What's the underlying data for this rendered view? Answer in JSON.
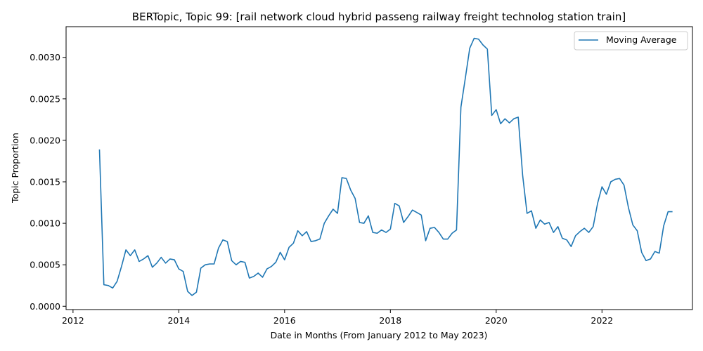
{
  "chart_data": {
    "type": "line",
    "title": "BERTopic, Topic 99: [rail network cloud hybrid passeng railway freight technolog station train]",
    "xlabel": "Date in Months (From January 2012 to May 2023)",
    "ylabel": "Topic Proportion",
    "xlim": [
      "2011-11-14",
      "2023-09-17"
    ],
    "ylim": [
      -4e-05,
      0.00337
    ],
    "x_ticks": [
      "2012",
      "2014",
      "2016",
      "2018",
      "2020",
      "2022"
    ],
    "y_ticks": [
      "0.0000",
      "0.0005",
      "0.0010",
      "0.0015",
      "0.0020",
      "0.0025",
      "0.0030"
    ],
    "legend": {
      "position": "top-right"
    },
    "grid": false,
    "series": [
      {
        "name": "Moving Average",
        "color": "#1f77b4",
        "x": [
          "2012-07",
          "2012-08",
          "2012-09",
          "2012-10",
          "2012-11",
          "2012-12",
          "2013-01",
          "2013-02",
          "2013-03",
          "2013-04",
          "2013-05",
          "2013-06",
          "2013-07",
          "2013-08",
          "2013-09",
          "2013-10",
          "2013-11",
          "2013-12",
          "2014-01",
          "2014-02",
          "2014-03",
          "2014-04",
          "2014-05",
          "2014-06",
          "2014-07",
          "2014-08",
          "2014-09",
          "2014-10",
          "2014-11",
          "2014-12",
          "2015-01",
          "2015-02",
          "2015-03",
          "2015-04",
          "2015-05",
          "2015-06",
          "2015-07",
          "2015-08",
          "2015-09",
          "2015-10",
          "2015-11",
          "2015-12",
          "2016-01",
          "2016-02",
          "2016-03",
          "2016-04",
          "2016-05",
          "2016-06",
          "2016-07",
          "2016-08",
          "2016-09",
          "2016-10",
          "2016-11",
          "2016-12",
          "2017-01",
          "2017-02",
          "2017-03",
          "2017-04",
          "2017-05",
          "2017-06",
          "2017-07",
          "2017-08",
          "2017-09",
          "2017-10",
          "2017-11",
          "2017-12",
          "2018-01",
          "2018-02",
          "2018-03",
          "2018-04",
          "2018-05",
          "2018-06",
          "2018-07",
          "2018-08",
          "2018-09",
          "2018-10",
          "2018-11",
          "2018-12",
          "2019-01",
          "2019-02",
          "2019-03",
          "2019-04",
          "2019-05",
          "2019-06",
          "2019-07",
          "2019-08",
          "2019-09",
          "2019-10",
          "2019-11",
          "2019-12",
          "2020-01",
          "2020-02",
          "2020-03",
          "2020-04",
          "2020-05",
          "2020-06",
          "2020-07",
          "2020-08",
          "2020-09",
          "2020-10",
          "2020-11",
          "2020-12",
          "2021-01",
          "2021-02",
          "2021-03",
          "2021-04",
          "2021-05",
          "2021-06",
          "2021-07",
          "2021-08",
          "2021-09",
          "2021-10",
          "2021-11",
          "2021-12",
          "2022-01",
          "2022-02",
          "2022-03",
          "2022-04",
          "2022-05",
          "2022-06",
          "2022-07",
          "2022-08",
          "2022-09",
          "2022-10",
          "2022-11",
          "2022-12",
          "2023-01",
          "2023-02",
          "2023-03",
          "2023-04",
          "2023-05"
        ],
        "y": [
          0.00189,
          0.00026,
          0.00025,
          0.00022,
          0.0003,
          0.00048,
          0.00068,
          0.00061,
          0.00068,
          0.00054,
          0.00057,
          0.00061,
          0.00047,
          0.00052,
          0.00059,
          0.00052,
          0.00057,
          0.00056,
          0.00045,
          0.00042,
          0.00018,
          0.00013,
          0.00017,
          0.00046,
          0.0005,
          0.00051,
          0.00051,
          0.0007,
          0.0008,
          0.00078,
          0.00055,
          0.0005,
          0.00054,
          0.00053,
          0.00034,
          0.00036,
          0.0004,
          0.00035,
          0.00045,
          0.00048,
          0.00053,
          0.00065,
          0.00056,
          0.00071,
          0.00076,
          0.00091,
          0.00085,
          0.0009,
          0.00078,
          0.00079,
          0.00081,
          0.001,
          0.00109,
          0.00117,
          0.00112,
          0.00155,
          0.00154,
          0.0014,
          0.0013,
          0.00101,
          0.001,
          0.00109,
          0.00089,
          0.00088,
          0.00092,
          0.00089,
          0.00093,
          0.00124,
          0.00121,
          0.00101,
          0.00108,
          0.00116,
          0.00113,
          0.0011,
          0.00079,
          0.00094,
          0.00095,
          0.00089,
          0.00081,
          0.00081,
          0.00088,
          0.00092,
          0.0024,
          0.00275,
          0.00311,
          0.00323,
          0.00322,
          0.00315,
          0.0031,
          0.0023,
          0.00237,
          0.0022,
          0.00226,
          0.00221,
          0.00226,
          0.00228,
          0.00158,
          0.00112,
          0.00115,
          0.00094,
          0.00104,
          0.00099,
          0.00101,
          0.00089,
          0.00096,
          0.00082,
          0.0008,
          0.00072,
          0.00085,
          0.0009,
          0.00094,
          0.00089,
          0.00096,
          0.00124,
          0.00144,
          0.00135,
          0.0015,
          0.00153,
          0.00154,
          0.00146,
          0.00119,
          0.00098,
          0.00091,
          0.00065,
          0.00055,
          0.00057,
          0.00066,
          0.00064,
          0.00097,
          0.00114,
          0.00114
        ]
      }
    ]
  }
}
